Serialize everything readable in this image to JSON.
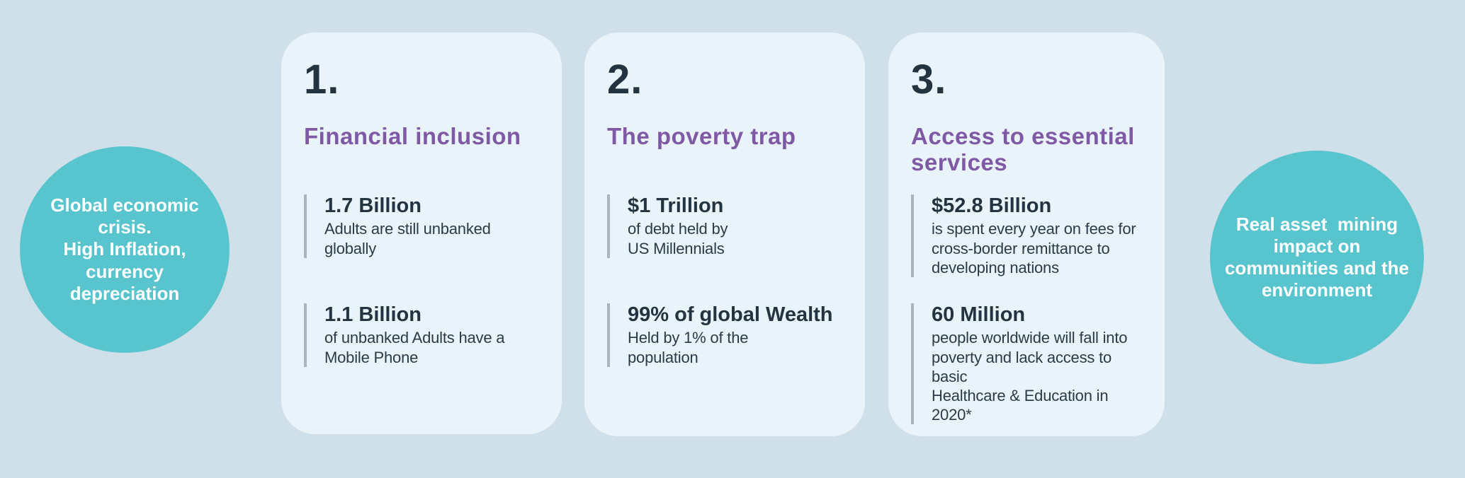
{
  "colors": {
    "page_background": "#cfe0ea",
    "card_background": "#e9f3fa",
    "circle_teal": "#57c4ce",
    "circle_text": "#ffffff",
    "number_navy": "#23333f",
    "title_purple": "#8059a6",
    "stat_bar_gray": "#aab4bc",
    "body_text": "#2a3b47"
  },
  "left_circle": {
    "lines": [
      "Global economic",
      "crisis.",
      "High Inflation,",
      "currency",
      "depreciation"
    ]
  },
  "right_circle": {
    "lines": [
      "Real asset  mining",
      "impact on",
      "communities and the",
      "environment"
    ]
  },
  "cards": [
    {
      "number": "1.",
      "title_lines": [
        "Financial inclusion"
      ],
      "stats": [
        {
          "value": "1.7 Billion",
          "desc_lines": [
            "Adults are still unbanked",
            "globally"
          ]
        },
        {
          "value": "1.1 Billion",
          "desc_lines": [
            "of unbanked Adults have a",
            "Mobile Phone"
          ]
        }
      ]
    },
    {
      "number": "2.",
      "title_lines": [
        "The poverty trap"
      ],
      "stats": [
        {
          "value": "$1 Trillion",
          "desc_lines": [
            "of debt held by",
            "US Millennials"
          ]
        },
        {
          "value": "99% of global Wealth",
          "desc_lines": [
            "Held by 1% of the",
            "population"
          ]
        }
      ]
    },
    {
      "number": "3.",
      "title_lines": [
        "Access to essential",
        "services"
      ],
      "stats": [
        {
          "value": "$52.8 Billion",
          "desc_lines": [
            "is spent every year on fees for",
            "cross-border remittance to",
            "developing nations"
          ]
        },
        {
          "value": "60 Million",
          "desc_lines": [
            "people worldwide will fall into",
            "poverty and lack access to basic",
            "Healthcare & Education in 2020*"
          ]
        }
      ]
    }
  ]
}
